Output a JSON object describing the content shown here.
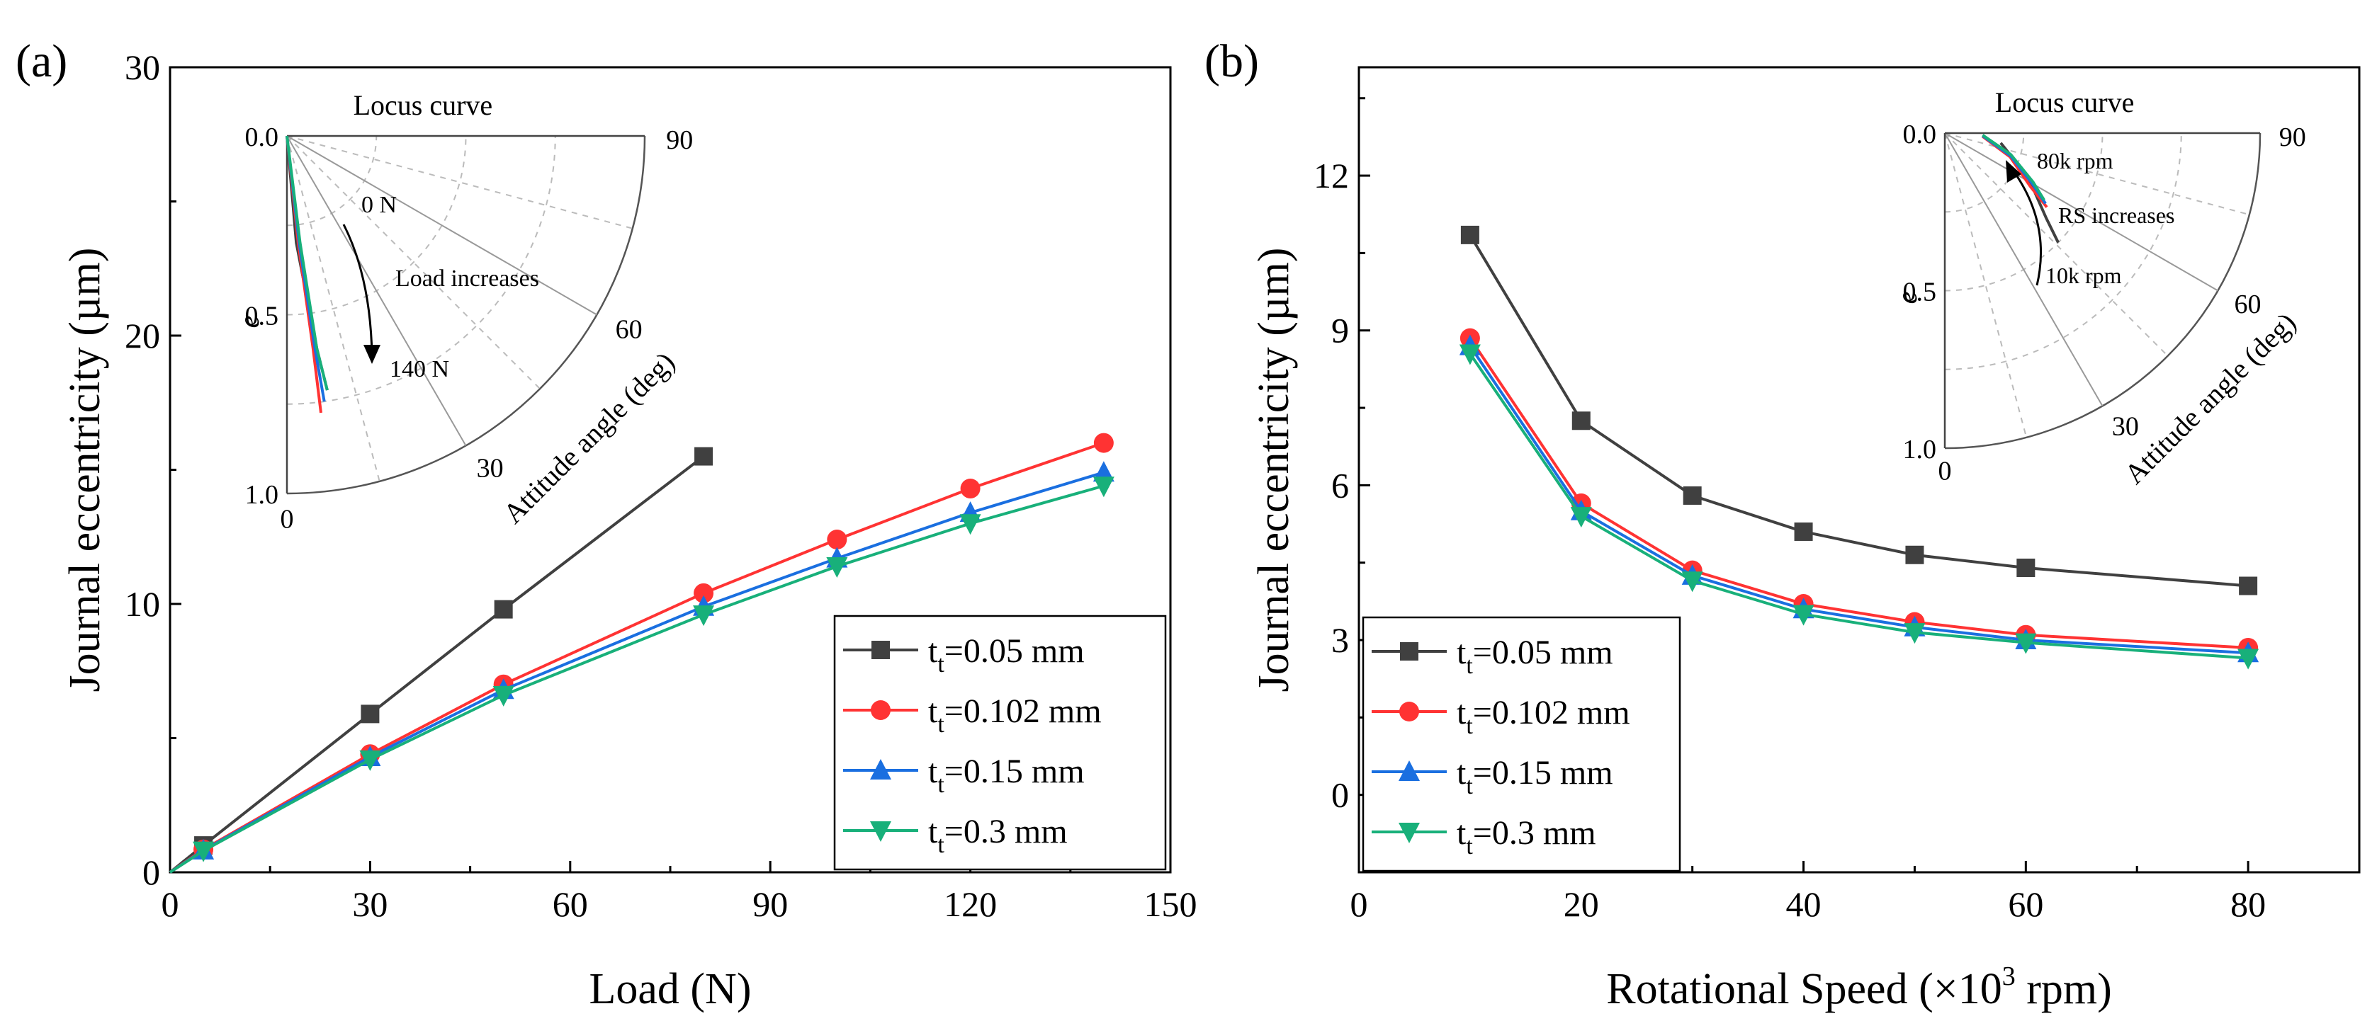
{
  "figure": {
    "panel_labels": [
      "(a)",
      "(b)"
    ]
  },
  "colors": {
    "t005": "#404040",
    "t0102": "#ff3333",
    "t015": "#1a6fe0",
    "t03": "#18b07a"
  },
  "chart_data": [
    {
      "type": "line",
      "panel": "(a)",
      "xlabel": "Load (N)",
      "ylabel": "Journal eccentricity (µm)",
      "xlim": [
        0,
        150
      ],
      "ylim": [
        0,
        30
      ],
      "xticks": [
        0,
        30,
        60,
        90,
        120,
        150
      ],
      "yticks": [
        0,
        10,
        20,
        30
      ],
      "legend_position": "bottom-right",
      "series": [
        {
          "key": "t005",
          "prefix": "t",
          "sub": "t",
          "suffix": "=0.05 mm",
          "marker": "square",
          "x": [
            0,
            5,
            30,
            50,
            80
          ],
          "y": [
            0,
            1.0,
            5.9,
            9.8,
            15.5
          ]
        },
        {
          "key": "t0102",
          "prefix": "t",
          "sub": "t",
          "suffix": "=0.102 mm",
          "marker": "circle",
          "x": [
            0,
            5,
            30,
            50,
            80,
            100,
            120,
            140
          ],
          "y": [
            0,
            0.85,
            4.4,
            7.0,
            10.4,
            12.4,
            14.3,
            16.0
          ]
        },
        {
          "key": "t015",
          "prefix": "t",
          "sub": "t",
          "suffix": "=0.15 mm",
          "marker": "triangle-up",
          "x": [
            0,
            5,
            30,
            50,
            80,
            100,
            120,
            140
          ],
          "y": [
            0,
            0.82,
            4.3,
            6.8,
            9.9,
            11.7,
            13.4,
            14.9
          ]
        },
        {
          "key": "t03",
          "prefix": "t",
          "sub": "t",
          "suffix": "=0.3 mm",
          "marker": "triangle-down",
          "x": [
            0,
            5,
            30,
            50,
            80,
            100,
            120,
            140
          ],
          "y": [
            0,
            0.8,
            4.2,
            6.6,
            9.6,
            11.4,
            13.0,
            14.4
          ]
        }
      ],
      "inset": {
        "title": "Locus curve",
        "r_label": "e",
        "theta_label": "Attitude angle (deg)",
        "r_ticks": [
          "0.0",
          "0.5",
          "1.0"
        ],
        "theta_ticks": [
          "0",
          "30",
          "60",
          "90"
        ],
        "annotations": [
          "0 N",
          "Load increases",
          "140 N"
        ],
        "curves": [
          {
            "key": "t005",
            "e": [
              0,
              0.3,
              0.6,
              0.72
            ],
            "theta_deg": [
              0,
              5,
              8,
              9
            ]
          },
          {
            "key": "t0102",
            "e": [
              0,
              0.3,
              0.6,
              0.78
            ],
            "theta_deg": [
              0,
              6,
              7,
              7
            ]
          },
          {
            "key": "t015",
            "e": [
              0,
              0.3,
              0.6,
              0.75
            ],
            "theta_deg": [
              0,
              6.5,
              7.5,
              8
            ]
          },
          {
            "key": "t03",
            "e": [
              0,
              0.3,
              0.6,
              0.72
            ],
            "theta_deg": [
              0,
              7,
              8,
              9
            ]
          }
        ]
      }
    },
    {
      "type": "line",
      "panel": "(b)",
      "xlabel_main": "Rotational Speed (×10",
      "xlabel_sup": "3",
      "xlabel_tail": " rpm)",
      "ylabel": "Journal eccentricity (µm)",
      "xlim": [
        0,
        90
      ],
      "ylim": [
        -1.5,
        14.1
      ],
      "xticks": [
        0,
        20,
        40,
        60,
        80
      ],
      "yticks": [
        0,
        3,
        6,
        9,
        12
      ],
      "legend_position": "bottom-left",
      "series": [
        {
          "key": "t005",
          "prefix": "t",
          "sub": "t",
          "suffix": "=0.05 mm",
          "marker": "square",
          "x": [
            10,
            20,
            30,
            40,
            50,
            60,
            80
          ],
          "y": [
            10.85,
            7.25,
            5.8,
            5.1,
            4.65,
            4.4,
            4.05
          ]
        },
        {
          "key": "t0102",
          "prefix": "t",
          "sub": "t",
          "suffix": "=0.102 mm",
          "marker": "circle",
          "x": [
            10,
            20,
            30,
            40,
            50,
            60,
            80
          ],
          "y": [
            8.85,
            5.65,
            4.35,
            3.7,
            3.35,
            3.1,
            2.85
          ]
        },
        {
          "key": "t015",
          "prefix": "t",
          "sub": "t",
          "suffix": "=0.15 mm",
          "marker": "triangle-up",
          "x": [
            10,
            20,
            30,
            40,
            50,
            60,
            80
          ],
          "y": [
            8.7,
            5.5,
            4.25,
            3.6,
            3.25,
            3.0,
            2.75
          ]
        },
        {
          "key": "t03",
          "prefix": "t",
          "sub": "t",
          "suffix": "=0.3 mm",
          "marker": "triangle-down",
          "x": [
            10,
            20,
            30,
            40,
            50,
            60,
            80
          ],
          "y": [
            8.55,
            5.4,
            4.15,
            3.5,
            3.15,
            2.95,
            2.65
          ]
        }
      ],
      "inset": {
        "title": "Locus curve",
        "r_label": "e",
        "theta_label": "Attitude angle (deg)",
        "r_ticks": [
          "0.0",
          "0.5",
          "1.0"
        ],
        "theta_ticks": [
          "0",
          "30",
          "60",
          "90"
        ],
        "annotations": [
          "80k rpm",
          "RS increases",
          "10k rpm"
        ],
        "curves": [
          {
            "key": "t005",
            "e": [
              0.18,
              0.3,
              0.42,
              0.5
            ],
            "theta_deg": [
              80,
              62,
              50,
              46
            ]
          },
          {
            "key": "t0102",
            "e": [
              0.12,
              0.22,
              0.32,
              0.4
            ],
            "theta_deg": [
              85,
              70,
              58,
              54
            ]
          },
          {
            "key": "t015",
            "e": [
              0.12,
              0.22,
              0.32,
              0.39
            ],
            "theta_deg": [
              86,
              71,
              60,
              55
            ]
          },
          {
            "key": "t03",
            "e": [
              0.12,
              0.22,
              0.32,
              0.38
            ],
            "theta_deg": [
              87,
              72,
              61,
              56
            ]
          }
        ]
      }
    }
  ]
}
